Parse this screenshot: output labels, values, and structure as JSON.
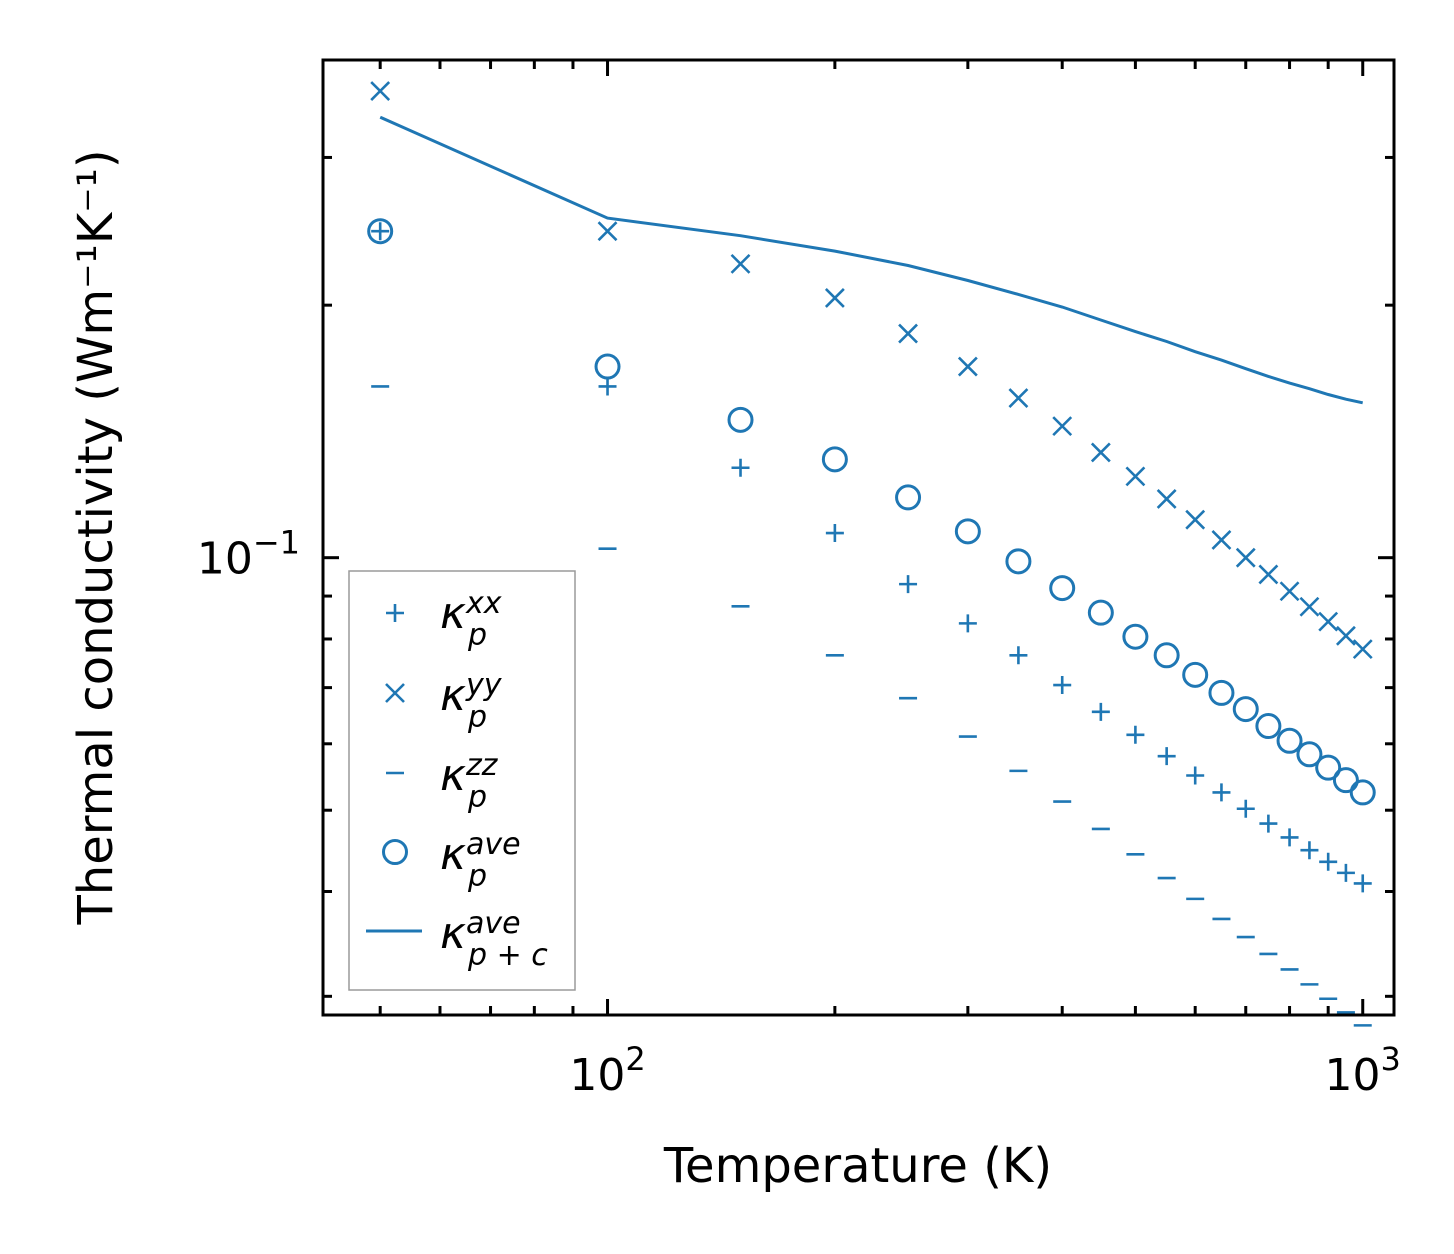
{
  "chart_data": {
    "type": "scatter",
    "xscale": "log",
    "yscale": "log",
    "xlabel": "Temperature (K)",
    "ylabel": "Thermal conductivity (Wm⁻¹K⁻¹)",
    "xlim": [
      42,
      1100
    ],
    "ylim": [
      0.0285,
      0.392
    ],
    "x_ticks": [
      {
        "base": "10",
        "exp": "2"
      },
      {
        "base": "10",
        "exp": "3"
      }
    ],
    "y_ticks": [
      {
        "base": "10",
        "exp": "−1"
      }
    ],
    "grid": false,
    "legend_position": "lower-left",
    "color": "#1f77b4",
    "x": [
      50,
      100,
      150,
      200,
      250,
      300,
      350,
      400,
      450,
      500,
      550,
      600,
      650,
      700,
      750,
      800,
      850,
      900,
      950,
      1000
    ],
    "series": [
      {
        "name": "κp^xx",
        "base": "κ",
        "sub": "p",
        "sup": "xx",
        "marker": "plus",
        "values": [
          0.245,
          0.16,
          0.128,
          0.107,
          0.093,
          0.0835,
          0.0765,
          0.0705,
          0.0655,
          0.0615,
          0.058,
          0.055,
          0.0525,
          0.0502,
          0.0482,
          0.0464,
          0.0448,
          0.0434,
          0.0421,
          0.0409
        ]
      },
      {
        "name": "κp^yy",
        "base": "κ",
        "sub": "p",
        "sup": "yy",
        "marker": "x",
        "values": [
          0.36,
          0.245,
          0.224,
          0.204,
          0.185,
          0.169,
          0.155,
          0.1435,
          0.1335,
          0.125,
          0.1175,
          0.111,
          0.105,
          0.1,
          0.0955,
          0.0912,
          0.0874,
          0.0839,
          0.0807,
          0.0778
        ]
      },
      {
        "name": "κp^zz",
        "base": "κ",
        "sub": "p",
        "sup": "zz",
        "marker": "dash",
        "values": [
          0.16,
          0.1025,
          0.0875,
          0.0765,
          0.068,
          0.0612,
          0.0557,
          0.0512,
          0.0475,
          0.0443,
          0.0415,
          0.0392,
          0.0371,
          0.0353,
          0.0337,
          0.0323,
          0.031,
          0.0298,
          0.0287,
          0.0277
        ]
      },
      {
        "name": "κp^ave",
        "base": "κ",
        "sub": "p",
        "sup": "ave",
        "marker": "circle",
        "values": [
          0.245,
          0.169,
          0.146,
          0.131,
          0.118,
          0.1075,
          0.099,
          0.092,
          0.086,
          0.0805,
          0.0765,
          0.0725,
          0.069,
          0.066,
          0.063,
          0.0605,
          0.0583,
          0.0562,
          0.0543,
          0.0525
        ]
      },
      {
        "name": "κp+c^ave",
        "base": "κ",
        "sub": "p + c",
        "sup": "ave",
        "marker": "line",
        "values": [
          0.335,
          0.254,
          0.242,
          0.232,
          0.223,
          0.214,
          0.206,
          0.199,
          0.192,
          0.186,
          0.181,
          0.176,
          0.172,
          0.168,
          0.1645,
          0.1615,
          0.159,
          0.1565,
          0.1545,
          0.153
        ]
      }
    ]
  }
}
